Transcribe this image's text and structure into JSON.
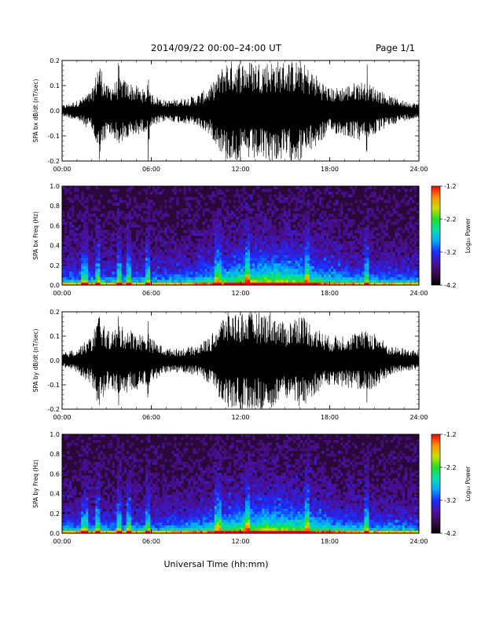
{
  "header": {
    "title": "2014/09/22  00:00–24:00 UT",
    "page": "Page 1/1"
  },
  "xaxis_label": "Universal Time (hh:mm)",
  "colormap": {
    "name": "rainbow",
    "stops": [
      "#000000",
      "#3a0a4a",
      "#4a10a0",
      "#1a2cff",
      "#00a8ff",
      "#00e0b0",
      "#20e020",
      "#c8e000",
      "#ff9000",
      "#ff0000"
    ]
  },
  "chart_data": [
    {
      "type": "line",
      "panel": "SPA bx dB/dt",
      "ylabel": "SPA bx dB/dt (nT/sec)",
      "xlim": [
        0,
        24
      ],
      "ylim": [
        -0.2,
        0.2
      ],
      "xticks": [
        "00:00",
        "06:00",
        "12:00",
        "18:00",
        "24:00"
      ],
      "yticks": [
        "-0.2",
        "-0.1",
        "0.0",
        "0.1",
        "0.2"
      ],
      "envelope": {
        "x": [
          0,
          1,
          2,
          2.5,
          3,
          4,
          5,
          6,
          7,
          8,
          9,
          10,
          11,
          12,
          13,
          14,
          15,
          16,
          17,
          18,
          19,
          20,
          21,
          22,
          23,
          24
        ],
        "amplitude": [
          0.02,
          0.04,
          0.08,
          0.2,
          0.1,
          0.13,
          0.1,
          0.07,
          0.04,
          0.05,
          0.06,
          0.1,
          0.2,
          0.2,
          0.2,
          0.2,
          0.2,
          0.2,
          0.15,
          0.09,
          0.1,
          0.12,
          0.1,
          0.06,
          0.04,
          0.03
        ]
      },
      "bursts": [
        {
          "x": 2.4,
          "amp": 0.22
        },
        {
          "x": 3.8,
          "amp": 0.22
        },
        {
          "x": 5.8,
          "amp": 0.22
        },
        {
          "x": 12.5,
          "amp": 0.22
        },
        {
          "x": 20.5,
          "amp": 0.22
        }
      ]
    },
    {
      "type": "heatmap",
      "panel": "SPA bx Freq",
      "ylabel": "SPA bx Freq (Hz)",
      "xlim": [
        0,
        24
      ],
      "ylim": [
        0.0,
        1.0
      ],
      "xticks": [
        "00:00",
        "06:00",
        "12:00",
        "18:00",
        "24:00"
      ],
      "yticks": [
        "0.0",
        "0.2",
        "0.4",
        "0.6",
        "0.8",
        "1.0"
      ],
      "colorbar_label": "Log₁₀ Power",
      "colorbar_ticks": [
        "-1.2",
        "-2.2",
        "-3.2",
        "-4.2"
      ],
      "zlim": [
        -4.2,
        -1.2
      ],
      "vertical_streaks_hours": [
        1.5,
        2.4,
        3.8,
        4.5,
        5.8,
        10.5,
        12.5,
        16.5,
        20.5
      ]
    },
    {
      "type": "line",
      "panel": "SPA by dB/dt",
      "ylabel": "SPA by dB/dt (nT/sec)",
      "xlim": [
        0,
        24
      ],
      "ylim": [
        -0.2,
        0.2
      ],
      "xticks": [
        "00:00",
        "06:00",
        "12:00",
        "18:00",
        "24:00"
      ],
      "yticks": [
        "-0.2",
        "-0.1",
        "0.0",
        "0.1",
        "0.2"
      ],
      "envelope": {
        "x": [
          0,
          1,
          2,
          2.5,
          3,
          4,
          5,
          6,
          7,
          8,
          9,
          10,
          11,
          12,
          13,
          14,
          15,
          16,
          17,
          18,
          19,
          20,
          21,
          22,
          23,
          24
        ],
        "amplitude": [
          0.03,
          0.05,
          0.1,
          0.2,
          0.12,
          0.14,
          0.12,
          0.09,
          0.05,
          0.05,
          0.06,
          0.1,
          0.2,
          0.2,
          0.2,
          0.2,
          0.15,
          0.2,
          0.14,
          0.1,
          0.11,
          0.12,
          0.12,
          0.06,
          0.05,
          0.04
        ]
      },
      "bursts": [
        {
          "x": 2.4,
          "amp": 0.22
        },
        {
          "x": 3.8,
          "amp": 0.22
        },
        {
          "x": 5.8,
          "amp": 0.22
        },
        {
          "x": 12.5,
          "amp": 0.22
        },
        {
          "x": 20.5,
          "amp": 0.22
        }
      ]
    },
    {
      "type": "heatmap",
      "panel": "SPA by Freq",
      "ylabel": "SPA by Freq (Hz)",
      "xlim": [
        0,
        24
      ],
      "ylim": [
        0.0,
        1.0
      ],
      "xticks": [
        "00:00",
        "06:00",
        "12:00",
        "18:00",
        "24:00"
      ],
      "yticks": [
        "0.0",
        "0.2",
        "0.4",
        "0.6",
        "0.8",
        "1.0"
      ],
      "colorbar_label": "Log₁₀ Power",
      "colorbar_ticks": [
        "-1.2",
        "-2.2",
        "-3.2",
        "-4.2"
      ],
      "zlim": [
        -4.2,
        -1.2
      ],
      "vertical_streaks_hours": [
        1.5,
        2.4,
        3.8,
        4.5,
        5.8,
        10.5,
        12.5,
        16.5,
        20.5
      ]
    }
  ]
}
